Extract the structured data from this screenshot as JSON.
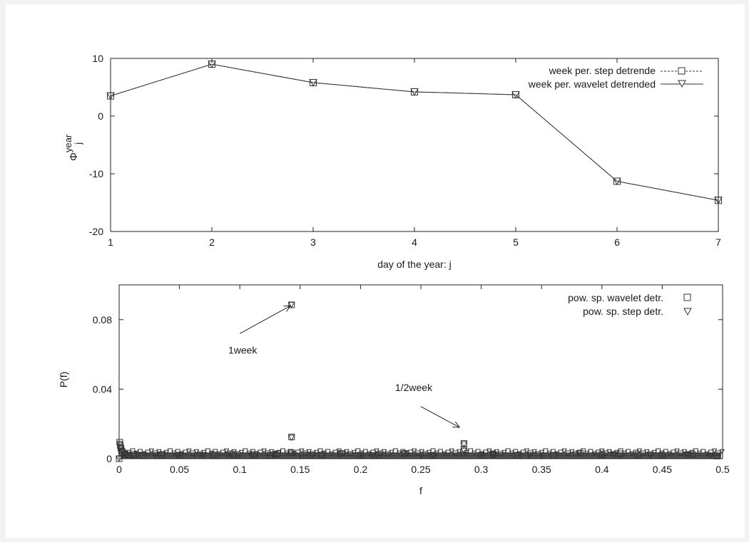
{
  "chart_data": [
    {
      "type": "line",
      "xlabel": "day of the year: j",
      "ylabel": {
        "base": "Φ",
        "superscript": "year",
        "subscript": "j"
      },
      "x": [
        1,
        2,
        3,
        4,
        5,
        6,
        7
      ],
      "xlim": [
        1,
        7
      ],
      "ylim": [
        -20,
        10
      ],
      "xticks": [
        "1",
        "2",
        "3",
        "4",
        "5",
        "6",
        "7"
      ],
      "yticks": [
        "10",
        "0",
        "-10",
        "-20"
      ],
      "grid": false,
      "legend_placement": "top-right",
      "series": [
        {
          "name": "week per. step detrende",
          "marker": "square",
          "line": "dashed",
          "values": [
            3.5,
            9.0,
            5.8,
            4.2,
            3.7,
            -11.3,
            -14.6
          ]
        },
        {
          "name": "week per. wavelet detrended",
          "marker": "triangle-down",
          "line": "solid",
          "values": [
            3.5,
            9.0,
            5.8,
            4.2,
            3.7,
            -11.3,
            -14.6
          ]
        }
      ]
    },
    {
      "type": "scatter",
      "xlabel": "f",
      "ylabel": "P(f)",
      "xlim": [
        0,
        0.5
      ],
      "ylim": [
        0,
        0.1
      ],
      "xticks": [
        "0",
        "0.05",
        "0.1",
        "0.15",
        "0.2",
        "0.25",
        "0.3",
        "0.35",
        "0.4",
        "0.45",
        "0.5"
      ],
      "yticks": [
        "0.08",
        "0.04",
        "0"
      ],
      "grid": false,
      "legend_placement": "top-right",
      "series": [
        {
          "name": "pow. sp. wavelet detr.",
          "marker": "square",
          "points": [
            [
              0.0,
              0.0
            ],
            [
              0.0005,
              0.0095
            ],
            [
              0.001,
              0.0075
            ],
            [
              0.0015,
              0.006
            ],
            [
              0.002,
              0.0045
            ],
            [
              0.003,
              0.0035
            ],
            [
              0.005,
              0.0025
            ],
            [
              0.008,
              0.002
            ],
            [
              0.012,
              0.0025
            ],
            [
              0.02,
              0.002
            ],
            [
              0.035,
              0.0022
            ],
            [
              0.05,
              0.002
            ],
            [
              0.065,
              0.0018
            ],
            [
              0.078,
              0.0022
            ],
            [
              0.095,
              0.0025
            ],
            [
              0.112,
              0.0025
            ],
            [
              0.125,
              0.002
            ],
            [
              0.131,
              0.0028
            ],
            [
              0.142857,
              0.0885
            ],
            [
              0.142857,
              0.0125
            ],
            [
              0.1428,
              0.0035
            ],
            [
              0.155,
              0.002
            ],
            [
              0.168,
              0.0022
            ],
            [
              0.184,
              0.003
            ],
            [
              0.2,
              0.002
            ],
            [
              0.215,
              0.0022
            ],
            [
              0.237,
              0.003
            ],
            [
              0.26,
              0.002
            ],
            [
              0.285714,
              0.0088
            ],
            [
              0.2857,
              0.005
            ],
            [
              0.3,
              0.002
            ],
            [
              0.31,
              0.0025
            ],
            [
              0.33,
              0.002
            ],
            [
              0.36,
              0.002
            ],
            [
              0.382,
              0.0032
            ],
            [
              0.4,
              0.0025
            ],
            [
              0.415,
              0.0028
            ],
            [
              0.43,
              0.0025
            ],
            [
              0.45,
              0.002
            ],
            [
              0.475,
              0.0025
            ],
            [
              0.495,
              0.0015
            ]
          ]
        },
        {
          "name": "pow. sp. step detr.",
          "marker": "triangle-down",
          "points": [
            [
              0.0,
              0.0
            ],
            [
              0.0005,
              0.0085
            ],
            [
              0.001,
              0.0065
            ],
            [
              0.0015,
              0.0055
            ],
            [
              0.0025,
              0.004
            ],
            [
              0.004,
              0.003
            ],
            [
              0.007,
              0.0022
            ],
            [
              0.015,
              0.0022
            ],
            [
              0.03,
              0.002
            ],
            [
              0.048,
              0.0018
            ],
            [
              0.07,
              0.002
            ],
            [
              0.09,
              0.0022
            ],
            [
              0.11,
              0.002
            ],
            [
              0.128,
              0.0022
            ],
            [
              0.142857,
              0.0885
            ],
            [
              0.142857,
              0.012
            ],
            [
              0.1428,
              0.003
            ],
            [
              0.16,
              0.002
            ],
            [
              0.183,
              0.0028
            ],
            [
              0.21,
              0.002
            ],
            [
              0.236,
              0.0028
            ],
            [
              0.26,
              0.002
            ],
            [
              0.285714,
              0.0082
            ],
            [
              0.2857,
              0.0045
            ],
            [
              0.31,
              0.0022
            ],
            [
              0.34,
              0.002
            ],
            [
              0.381,
              0.003
            ],
            [
              0.41,
              0.0022
            ],
            [
              0.44,
              0.002
            ],
            [
              0.47,
              0.0022
            ],
            [
              0.49,
              0.0015
            ]
          ]
        }
      ],
      "annotations": [
        {
          "text": "1week",
          "arrow_from": [
            0.1,
            0.072
          ],
          "arrow_to": [
            0.142,
            0.088
          ]
        },
        {
          "text": "1/2week",
          "arrow_from": [
            0.25,
            0.03
          ],
          "arrow_to": [
            0.282,
            0.018
          ]
        }
      ]
    }
  ]
}
